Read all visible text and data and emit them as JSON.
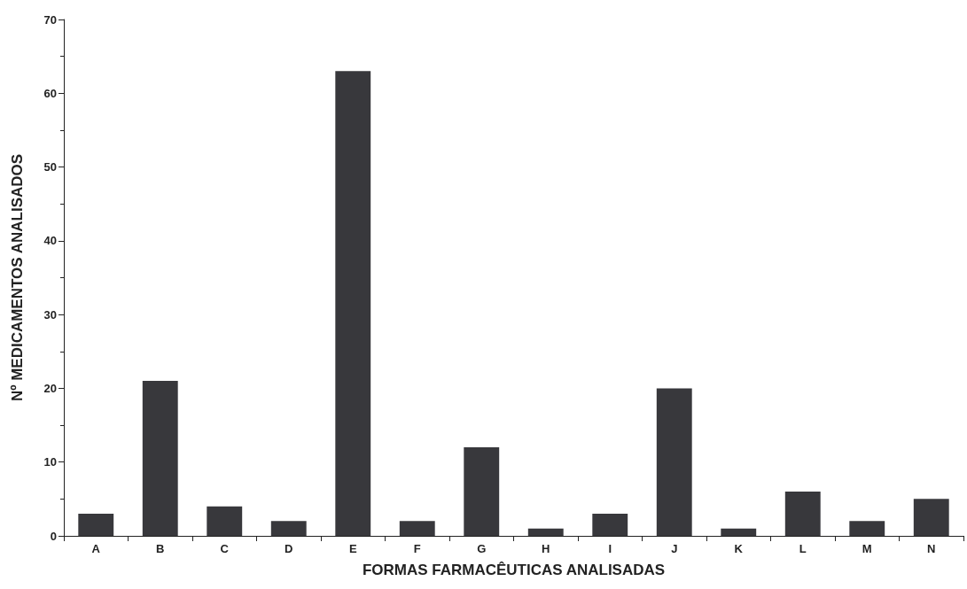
{
  "chart_data": {
    "type": "bar",
    "xlabel": "FORMAS FARMACÊUTICAS ANALISADAS",
    "ylabel": "Nº MEDICAMENTOS ANALISADOS",
    "categories": [
      "A",
      "B",
      "C",
      "D",
      "E",
      "F",
      "G",
      "H",
      "I",
      "J",
      "K",
      "L",
      "M",
      "N"
    ],
    "values": [
      3,
      21,
      4,
      2,
      63,
      2,
      12,
      1,
      3,
      20,
      1,
      6,
      2,
      5
    ],
    "color": "#38383c",
    "ylim": [
      0,
      70
    ],
    "yticks": [
      0,
      10,
      20,
      30,
      40,
      50,
      60,
      70
    ],
    "grid": false
  }
}
